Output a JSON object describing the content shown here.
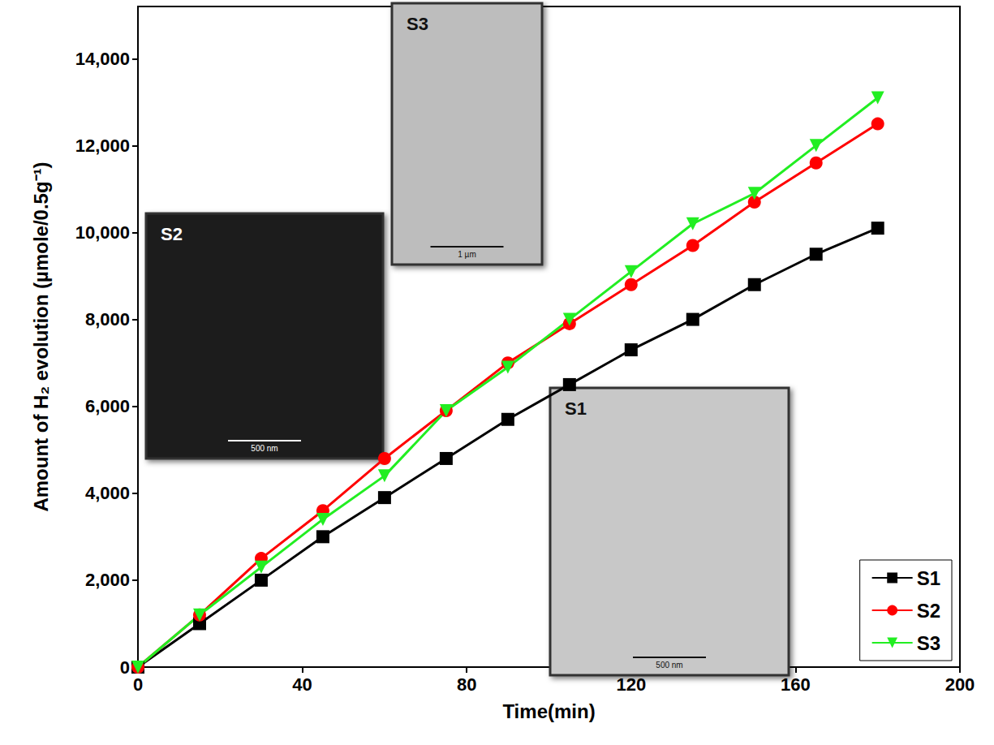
{
  "chart_data": {
    "type": "line",
    "x_label": "Time(min)",
    "y_label": "Amount of H₂ evolution (µmole/0.5g⁻¹)",
    "x": [
      0,
      15,
      30,
      45,
      60,
      75,
      90,
      105,
      120,
      135,
      150,
      165,
      180
    ],
    "xlim": [
      0,
      200
    ],
    "xticks": [
      0,
      40,
      80,
      120,
      160,
      200
    ],
    "ylim": [
      0,
      15200
    ],
    "yticks": [
      0,
      2000,
      4000,
      6000,
      8000,
      10000,
      12000,
      14000
    ],
    "grid": false,
    "legend": "lower right",
    "series": [
      {
        "name": "S1",
        "color": "#000000",
        "marker": "square",
        "line_style": "solid",
        "values": [
          0,
          1000,
          2000,
          3000,
          3900,
          4800,
          5700,
          6500,
          7300,
          8000,
          8800,
          9500,
          10100
        ]
      },
      {
        "name": "S2",
        "color": "#ff0000",
        "marker": "circle",
        "line_style": "solid",
        "values": [
          0,
          1200,
          2500,
          3600,
          4800,
          5900,
          7000,
          7900,
          8800,
          9700,
          10700,
          11600,
          12500
        ]
      },
      {
        "name": "S3",
        "color": "#22ee22",
        "marker": "triangle_down",
        "line_style": "solid",
        "values": [
          0,
          1200,
          2300,
          3400,
          4400,
          5900,
          6900,
          8000,
          9100,
          10200,
          10900,
          12000,
          13100
        ]
      }
    ],
    "insets": [
      {
        "label": "S2",
        "scale_bar": "500 nm"
      },
      {
        "label": "S3",
        "scale_bar": "1 µm"
      },
      {
        "label": "S1",
        "scale_bar": "500 nm"
      }
    ]
  }
}
